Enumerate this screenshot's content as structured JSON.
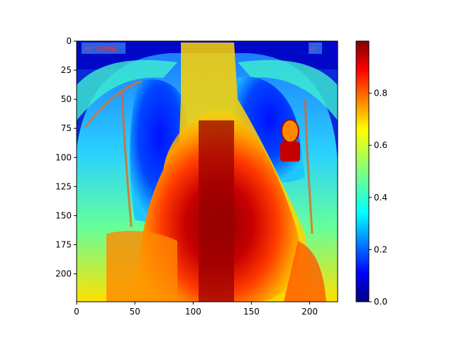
{
  "image": {
    "description_kind": "chest x-ray heatmap with jet colormap",
    "colormap": "jet",
    "width_units": 224,
    "height_units": 224,
    "x_ticks": [
      0,
      50,
      100,
      150,
      200
    ],
    "y_ticks": [
      0,
      25,
      50,
      75,
      100,
      125,
      150,
      175,
      200
    ],
    "overlay_labels": [
      "AP SUPINE",
      "M"
    ]
  },
  "colorbar": {
    "ticks": [
      0.0,
      0.2,
      0.4,
      0.6,
      0.8
    ],
    "tick_labels": [
      "0.0",
      "0.2",
      "0.4",
      "0.6",
      "0.8"
    ],
    "range": [
      0,
      1
    ]
  },
  "colors": {
    "jet_low": "#00007f",
    "jet_mid": "#7fff7f",
    "jet_high": "#7f0000"
  }
}
